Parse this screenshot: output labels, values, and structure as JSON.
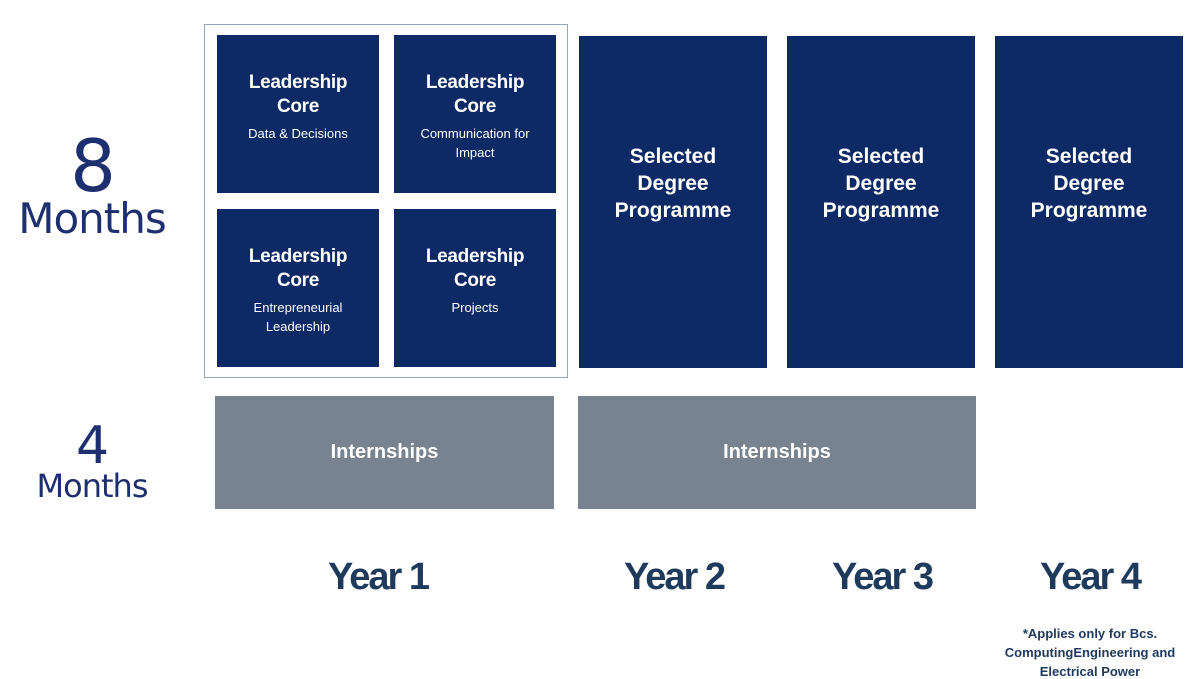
{
  "rows": {
    "eight_months": {
      "number": "8",
      "unit": "Months"
    },
    "four_months": {
      "number": "4",
      "unit": "Months"
    }
  },
  "leadership_core": [
    {
      "title": "Leadership Core",
      "subtitle": "Data & Decisions"
    },
    {
      "title": "Leadership Core",
      "subtitle": "Communication for Impact"
    },
    {
      "title": "Leadership Core",
      "subtitle": "Entrepreneurial Leadership"
    },
    {
      "title": "Leadership Core",
      "subtitle": "Projects"
    }
  ],
  "degree_programmes": [
    {
      "title": "Selected Degree Programme"
    },
    {
      "title": "Selected Degree Programme"
    },
    {
      "title": "Selected Degree Programme"
    }
  ],
  "internships": [
    {
      "label": "Internships"
    },
    {
      "label": "Internships"
    }
  ],
  "years": [
    "Year 1",
    "Year 2",
    "Year 3",
    "Year 4"
  ],
  "footnote": "*Applies only for Bcs. ComputingEngineering and Electrical Power",
  "colors": {
    "core_box": "#0e2a66",
    "internship_box": "#77848f",
    "row_label": "#1d2f6e",
    "year_label": "#1e3a5c",
    "frame_border": "#8fa6bb"
  }
}
